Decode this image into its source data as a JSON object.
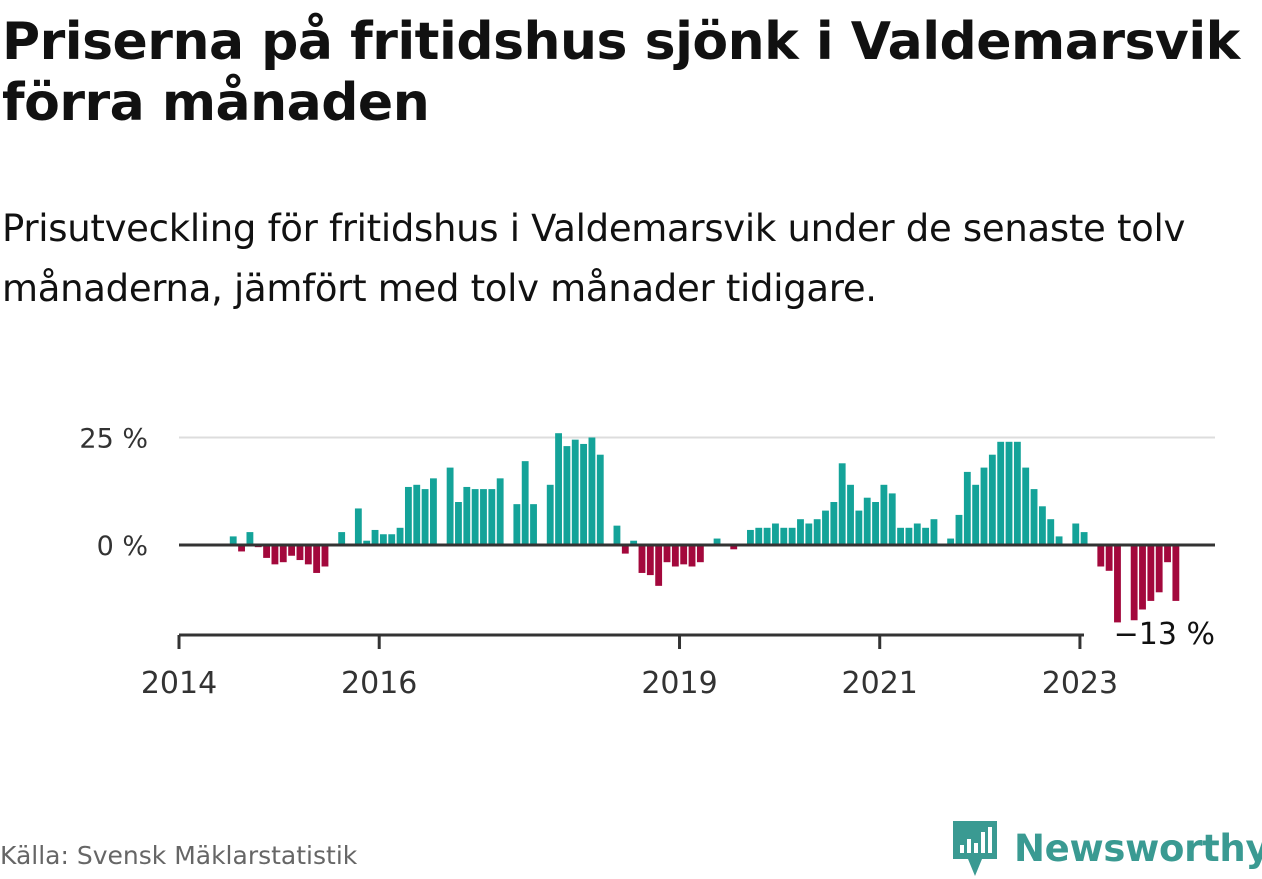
{
  "title": "Priserna på fritidshus sjönk i Valdemarsvik förra månaden",
  "subtitle": "Prisutveckling för fritidshus i Valdemarsvik under de senaste tolv månaderna, jämfört med tolv månader tidigare.",
  "source": "Källa: Svensk Mäklarstatistik",
  "brand": "Newsworthy",
  "colors": {
    "positive": "#14a399",
    "negative": "#a3083c",
    "axis": "#333333",
    "grid": "#dddddd",
    "brand": "#3a9a92"
  },
  "chart_data": {
    "type": "bar",
    "title": "",
    "xlabel": "",
    "ylabel": "",
    "ylim": [
      -20,
      27
    ],
    "yticks": [
      {
        "value": 0,
        "label": "0 %"
      },
      {
        "value": 25,
        "label": "25 %"
      }
    ],
    "xticks": [
      {
        "index": 0,
        "label": "2014"
      },
      {
        "index": 24,
        "label": "2016"
      },
      {
        "index": 60,
        "label": "2019"
      },
      {
        "index": 84,
        "label": "2021"
      },
      {
        "index": 108,
        "label": "2023"
      }
    ],
    "grid": true,
    "last_label": "−13 %",
    "start": "2014-01",
    "values": [
      null,
      null,
      null,
      null,
      null,
      null,
      2,
      -1.5,
      3,
      -0.5,
      -3,
      -4.5,
      -4,
      -2.5,
      -3.5,
      -4.5,
      -6.5,
      -5,
      0,
      3,
      0,
      8.5,
      1,
      3.5,
      2.5,
      2.5,
      4,
      13.5,
      14,
      13,
      15.5,
      0,
      18,
      10,
      13.5,
      13,
      13,
      13,
      15.5,
      0,
      9.5,
      19.5,
      9.5,
      0,
      14,
      26,
      23,
      24.5,
      23.5,
      25,
      21,
      0,
      4.5,
      -2,
      1,
      -6.5,
      -7,
      -9.5,
      -4,
      -5,
      -4.5,
      -5,
      -4,
      0,
      1.5,
      0,
      -1,
      0,
      3.5,
      4,
      4,
      5,
      4,
      4,
      6,
      5,
      6,
      8,
      10,
      19,
      14,
      8,
      11,
      10,
      14,
      12,
      4,
      4,
      5,
      4,
      6,
      0,
      1.5,
      7,
      17,
      14,
      18,
      21,
      24,
      24,
      24,
      18,
      13,
      9,
      6,
      2,
      0,
      5,
      3,
      0,
      -5,
      -6,
      -18,
      0,
      -17.5,
      -15,
      -13,
      -11,
      -4,
      -13
    ]
  }
}
